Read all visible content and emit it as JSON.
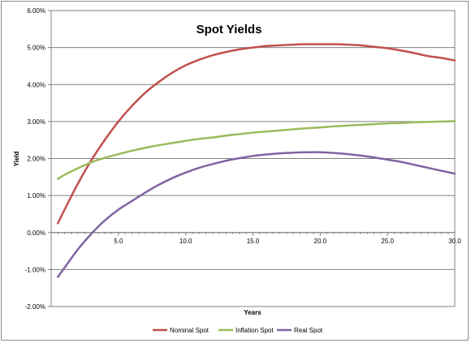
{
  "chart_data": {
    "type": "line",
    "title": "Spot Yields",
    "xlabel": "Years",
    "ylabel": "Yield",
    "xlim": [
      0,
      30
    ],
    "ylim": [
      -2,
      6
    ],
    "x_ticks": [
      5,
      10,
      15,
      20,
      25,
      30
    ],
    "x_tick_labels": [
      "5.0",
      "10.0",
      "15.0",
      "20.0",
      "25.0",
      "30.0"
    ],
    "y_ticks": [
      -2,
      -1,
      0,
      1,
      2,
      3,
      4,
      5,
      6
    ],
    "y_tick_labels": [
      "-2.00%",
      "-1.00%",
      "0.00%",
      "1.00%",
      "2.00%",
      "3.00%",
      "4.00%",
      "5.00%",
      "6.00%"
    ],
    "grid": "horizontal",
    "legend": "bottom",
    "x": [
      0.5,
      1,
      2,
      3,
      4,
      5,
      6,
      7,
      8,
      9,
      10,
      11,
      12,
      13,
      14,
      15,
      16,
      17,
      18,
      19,
      20,
      21,
      22,
      23,
      24,
      25,
      26,
      27,
      28,
      29,
      30
    ],
    "series": [
      {
        "name": "Nominal Spot",
        "color": "#c0504d",
        "values": [
          0.25,
          0.62,
          1.33,
          1.96,
          2.51,
          3.0,
          3.42,
          3.78,
          4.07,
          4.32,
          4.52,
          4.67,
          4.79,
          4.88,
          4.95,
          5.0,
          5.04,
          5.06,
          5.08,
          5.09,
          5.09,
          5.09,
          5.08,
          5.06,
          5.02,
          4.98,
          4.92,
          4.85,
          4.77,
          4.72,
          4.65
        ]
      },
      {
        "name": "Inflation Spot",
        "color": "#9bbb59",
        "values": [
          1.45,
          1.56,
          1.74,
          1.9,
          2.02,
          2.12,
          2.21,
          2.29,
          2.36,
          2.42,
          2.48,
          2.53,
          2.57,
          2.62,
          2.66,
          2.7,
          2.73,
          2.76,
          2.79,
          2.82,
          2.84,
          2.87,
          2.89,
          2.91,
          2.93,
          2.95,
          2.96,
          2.98,
          2.99,
          3.0,
          3.01
        ]
      },
      {
        "name": "Real Spot",
        "color": "#8064a2",
        "values": [
          -1.2,
          -0.95,
          -0.45,
          -0.03,
          0.33,
          0.62,
          0.85,
          1.08,
          1.29,
          1.47,
          1.62,
          1.75,
          1.85,
          1.94,
          2.01,
          2.07,
          2.11,
          2.14,
          2.16,
          2.17,
          2.17,
          2.15,
          2.12,
          2.08,
          2.03,
          1.97,
          1.91,
          1.83,
          1.75,
          1.67,
          1.59
        ]
      }
    ]
  }
}
